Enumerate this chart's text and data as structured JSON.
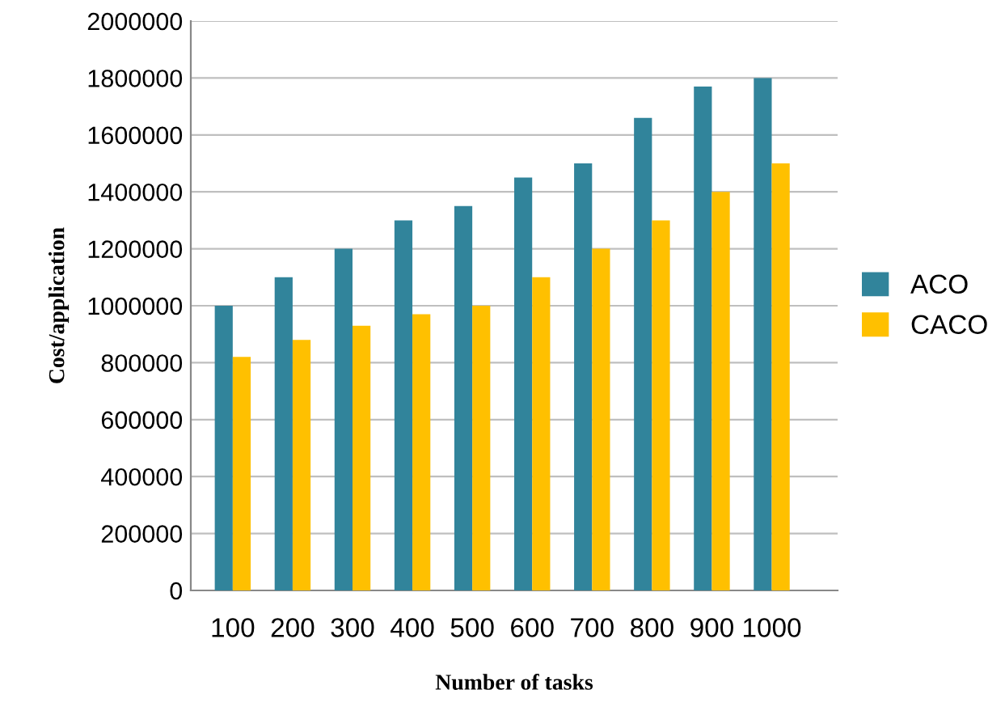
{
  "chart_data": {
    "type": "bar",
    "xlabel": "Number of tasks",
    "ylabel": "Cost/application",
    "categories": [
      "100",
      "200",
      "300",
      "400",
      "500",
      "600",
      "700",
      "800",
      "900",
      "1000"
    ],
    "series": [
      {
        "name": "ACO",
        "color": "#31849b",
        "values": [
          1000000,
          1100000,
          1200000,
          1300000,
          1350000,
          1450000,
          1500000,
          1660000,
          1770000,
          1800000
        ]
      },
      {
        "name": "CACO",
        "color": "#ffc000",
        "values": [
          820000,
          880000,
          930000,
          970000,
          1000000,
          1100000,
          1200000,
          1300000,
          1400000,
          1500000
        ]
      }
    ],
    "ylim": [
      0,
      2000000
    ],
    "yticks": [
      0,
      200000,
      400000,
      600000,
      800000,
      1000000,
      1200000,
      1400000,
      1600000,
      1800000,
      2000000
    ],
    "grid": "y",
    "legend": "right"
  }
}
